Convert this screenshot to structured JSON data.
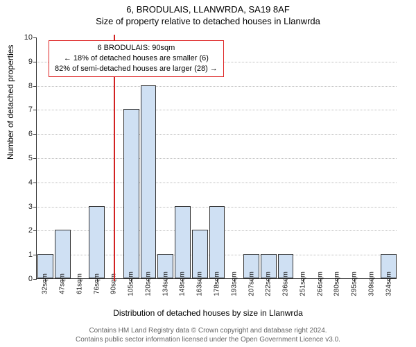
{
  "title": "6, BRODULAIS, LLANWRDA, SA19 8AF",
  "subtitle": "Size of property relative to detached houses in Llanwrda",
  "ylabel": "Number of detached properties",
  "xlabel": "Distribution of detached houses by size in Llanwrda",
  "footer_line1": "Contains HM Land Registry data © Crown copyright and database right 2024.",
  "footer_line2": "Contains public sector information licensed under the Open Government Licence v3.0.",
  "info_box": {
    "line1": "6 BRODULAIS: 90sqm",
    "line2": "← 18% of detached houses are smaller (6)",
    "line3": "82% of semi-detached houses are larger (28) →"
  },
  "chart": {
    "type": "histogram",
    "ylim": [
      0,
      10
    ],
    "ytick_step": 1,
    "bar_color": "#cfe0f3",
    "bar_border": "#333333",
    "grid_color": "#bbbbbb",
    "background_color": "#ffffff",
    "ref_line_color": "#d22222",
    "ref_line_x_index": 4,
    "x_unit": "sqm",
    "categories": [
      "32",
      "47",
      "61",
      "76",
      "90",
      "105",
      "120",
      "134",
      "149",
      "163",
      "178",
      "193",
      "207",
      "222",
      "236",
      "251",
      "266",
      "280",
      "295",
      "309",
      "324"
    ],
    "values": [
      1,
      2,
      0,
      3,
      0,
      7,
      8,
      1,
      3,
      2,
      3,
      0,
      1,
      1,
      1,
      0,
      0,
      0,
      0,
      0,
      1
    ],
    "title_fontsize": 13,
    "label_fontsize": 12,
    "tick_fontsize": 10
  }
}
